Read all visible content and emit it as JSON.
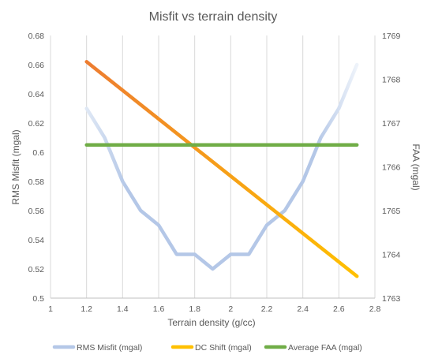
{
  "chart_data": {
    "type": "line",
    "title": "Misfit vs terrain density",
    "xlabel": "Terrain density (g/cc)",
    "ylabel": "RMS Misfit (mgal)",
    "y2label": "FAA (mgal)",
    "xlim": [
      1,
      2.8
    ],
    "ylim": [
      0.5,
      0.68
    ],
    "y2lim": [
      1763,
      1769
    ],
    "xticks": [
      "1",
      "1.2",
      "1.4",
      "1.6",
      "1.8",
      "2",
      "2.2",
      "2.4",
      "2.6",
      "2.8"
    ],
    "yticks": [
      "0.5",
      "0.52",
      "0.54",
      "0.56",
      "0.58",
      "0.6",
      "0.62",
      "0.64",
      "0.66",
      "0.68"
    ],
    "y2ticks": [
      "1763",
      "1764",
      "1765",
      "1766",
      "1767",
      "1768",
      "1769"
    ],
    "grid": "vertical",
    "legend": "bottom",
    "series": [
      {
        "name": "RMS Misfit (mgal)",
        "axis": "left",
        "color": "#b4c7e7",
        "x": [
          1.2,
          1.3,
          1.4,
          1.5,
          1.6,
          1.7,
          1.8,
          1.9,
          2.0,
          2.1,
          2.2,
          2.3,
          2.4,
          2.5,
          2.6,
          2.7
        ],
        "y": [
          0.63,
          0.61,
          0.58,
          0.56,
          0.55,
          0.53,
          0.53,
          0.52,
          0.53,
          0.53,
          0.55,
          0.56,
          0.58,
          0.61,
          0.63,
          0.66
        ]
      },
      {
        "name": "DC Shift (mgal)",
        "axis": "right",
        "color": "#ffc000",
        "color_start": "#ed7d31",
        "x": [
          1.2,
          2.7
        ],
        "y": [
          1768.4,
          1763.5
        ]
      },
      {
        "name": "Average FAA (mgal)",
        "axis": "right",
        "color": "#70ad47",
        "x": [
          1.2,
          2.7
        ],
        "y": [
          1766.5,
          1766.5
        ]
      }
    ]
  }
}
